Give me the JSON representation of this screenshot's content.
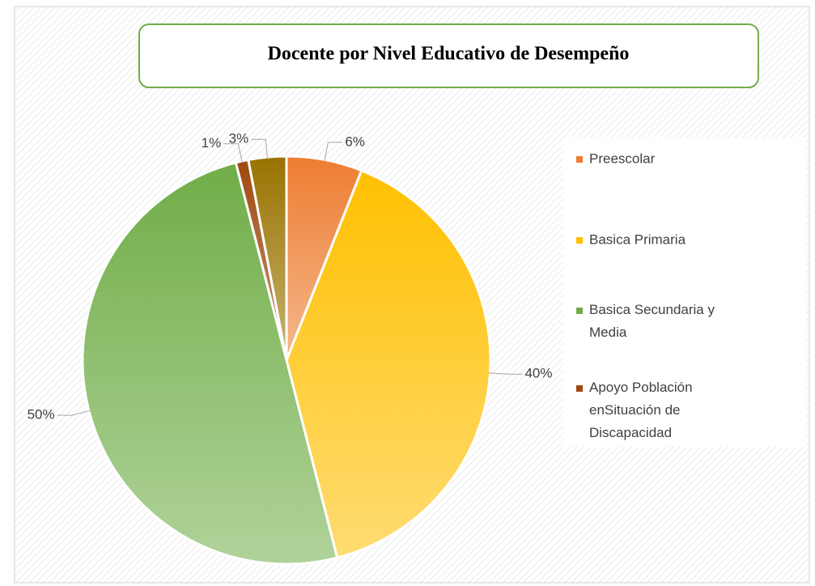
{
  "chart_data": {
    "type": "pie",
    "title": "Docente por Nivel Educativo de Desempeño",
    "categories": [
      "Preescolar",
      "Basica Primaria",
      "Basica Secundaria y Media",
      "Apoyo Población enSituación de Discapacidad",
      null
    ],
    "values": [
      6,
      40,
      50,
      1,
      3
    ],
    "value_labels": [
      "6%",
      "40%",
      "50%",
      "1%",
      "3%"
    ],
    "colors": [
      "#ed7d31",
      "#ffc000",
      "#70ad47",
      "#9e480e",
      "#997300"
    ],
    "legend": "right"
  }
}
